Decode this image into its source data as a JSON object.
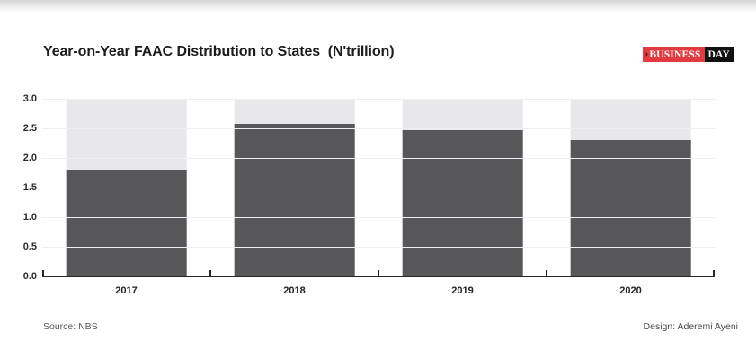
{
  "header": {
    "title": "Year-on-Year FAAC Distribution to States  (N'trillion)",
    "logo": {
      "arrow_glyph": "›",
      "part1": "BUSINESS",
      "part2": "DAY",
      "red": "#e13b41",
      "black": "#111111"
    }
  },
  "chart_data": {
    "type": "bar",
    "title": "Year-on-Year FAAC Distribution to States (N'trillion)",
    "categories": [
      "2017",
      "2018",
      "2019",
      "2020"
    ],
    "values": [
      1.8,
      2.57,
      2.47,
      2.3
    ],
    "xlabel": "",
    "ylabel": "",
    "ylim": [
      0,
      3
    ],
    "ytick_labels": [
      "0.0",
      "0.5",
      "1.0",
      "1.5",
      "2.0",
      "2.5",
      "3.0"
    ],
    "grid": true,
    "legend": "none",
    "bar_color": "#57575a",
    "track_color": "#e8e8ea",
    "track_top_value": 3.0,
    "axis_color": "#262626"
  },
  "footer": {
    "source": "Source: NBS",
    "design": "Design: Aderemi Ayeni"
  }
}
